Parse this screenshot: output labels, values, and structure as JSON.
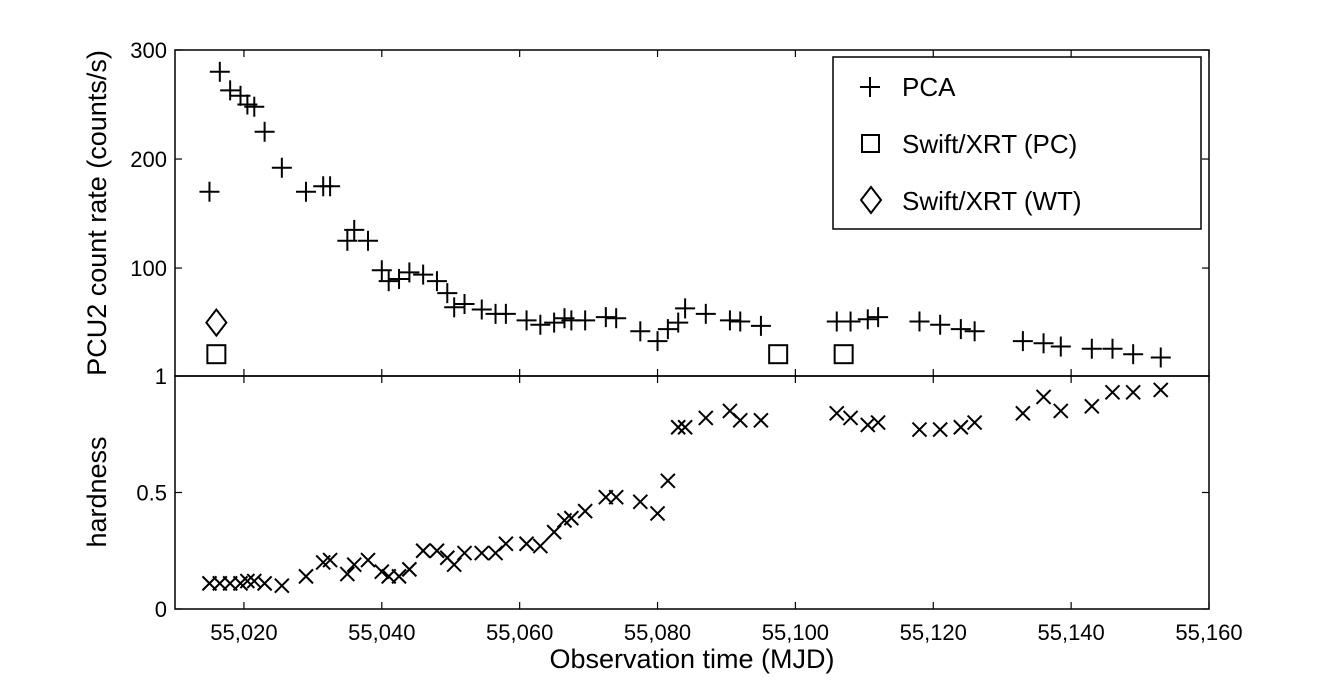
{
  "chart_data": [
    {
      "type": "scatter",
      "panel": "top",
      "ylabel": "PCU2 count rate (counts/s)",
      "xlim": [
        55010,
        55160
      ],
      "ylim": [
        1,
        300
      ],
      "yticks": [
        1,
        100,
        200,
        300
      ],
      "legend_position": "top-right",
      "series": [
        {
          "name": "PCA",
          "marker": "plus",
          "x": [
            55015,
            55016.5,
            55018,
            55019.5,
            55020.5,
            55021.5,
            55023,
            55025.5,
            55029,
            55031.5,
            55032.5,
            55035,
            55036,
            55038,
            55040,
            55041,
            55042.5,
            55044,
            55046,
            55048,
            55049.5,
            55050.5,
            55052,
            55054.5,
            55056.5,
            55058,
            55061,
            55063,
            55065,
            55066.5,
            55067.5,
            55069.5,
            55072.5,
            55074,
            55077.5,
            55080,
            55081.5,
            55083,
            55084,
            55087,
            55090.5,
            55092,
            55095,
            55106,
            55108,
            55110.5,
            55112,
            55118,
            55121,
            55124,
            55126,
            55133,
            55136,
            55138.5,
            55143,
            55146,
            55149,
            55153
          ],
          "y": [
            170,
            280,
            263,
            258,
            250,
            248,
            225,
            192,
            170,
            175,
            175,
            125,
            135,
            125,
            98,
            88,
            90,
            96,
            94,
            88,
            77,
            64,
            67,
            62,
            58,
            58,
            52,
            48,
            50,
            54,
            52,
            52,
            55,
            54,
            42,
            33,
            44,
            50,
            63,
            58,
            52,
            51,
            47,
            51,
            51,
            53,
            55,
            51,
            48,
            44,
            42,
            33,
            31,
            28,
            26,
            26,
            21,
            18
          ]
        },
        {
          "name": "Swift/XRT (PC)",
          "marker": "square",
          "x": [
            55016,
            55097.5,
            55107
          ],
          "y": [
            21,
            21,
            21
          ]
        },
        {
          "name": "Swift/XRT (WT)",
          "marker": "diamond",
          "x": [
            55016
          ],
          "y": [
            50
          ]
        }
      ]
    },
    {
      "type": "scatter",
      "panel": "bottom",
      "ylabel": "hardness",
      "xlabel": "Observation time (MJD)",
      "xlim": [
        55010,
        55160
      ],
      "ylim": [
        0,
        1
      ],
      "yticks": [
        0,
        0.5,
        1
      ],
      "xticks": [
        55020,
        55040,
        55060,
        55080,
        55100,
        55120,
        55140,
        55160
      ],
      "series": [
        {
          "name": "hardness",
          "marker": "cross",
          "x": [
            55015,
            55016.5,
            55018,
            55019.5,
            55020.5,
            55021.5,
            55023,
            55025.5,
            55029,
            55031.5,
            55032.5,
            55035,
            55036,
            55038,
            55040,
            55041,
            55042.5,
            55044,
            55046,
            55048,
            55049.5,
            55050.5,
            55052,
            55054.5,
            55056.5,
            55058,
            55061,
            55063,
            55065,
            55066.5,
            55067.5,
            55069.5,
            55072.5,
            55074,
            55077.5,
            55080,
            55081.5,
            55083,
            55084,
            55087,
            55090.5,
            55092,
            55095,
            55106,
            55108,
            55110.5,
            55112,
            55118,
            55121,
            55124,
            55126,
            55133,
            55136,
            55138.5,
            55143,
            55146,
            55149,
            55153
          ],
          "y": [
            0.11,
            0.11,
            0.11,
            0.11,
            0.12,
            0.12,
            0.11,
            0.1,
            0.14,
            0.2,
            0.21,
            0.15,
            0.19,
            0.21,
            0.16,
            0.14,
            0.14,
            0.17,
            0.25,
            0.25,
            0.22,
            0.19,
            0.24,
            0.24,
            0.24,
            0.28,
            0.28,
            0.27,
            0.33,
            0.38,
            0.39,
            0.42,
            0.48,
            0.48,
            0.46,
            0.41,
            0.55,
            0.78,
            0.78,
            0.82,
            0.85,
            0.81,
            0.81,
            0.84,
            0.82,
            0.79,
            0.8,
            0.77,
            0.77,
            0.78,
            0.8,
            0.84,
            0.91,
            0.85,
            0.87,
            0.93,
            0.93,
            0.94
          ]
        }
      ]
    }
  ]
}
